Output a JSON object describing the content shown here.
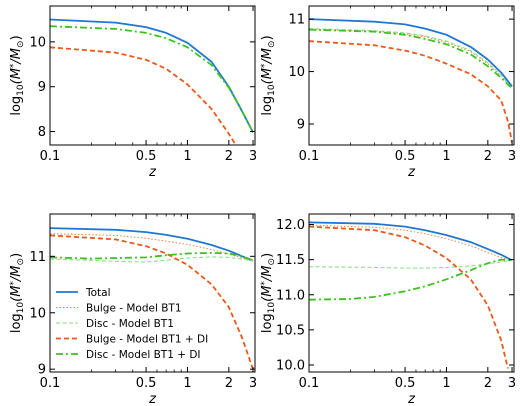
{
  "chart_data": [
    {
      "type": "line",
      "panel": "top-left",
      "xlabel": "z",
      "ylabel": "log10(M*/M⊙)",
      "xscale": "log",
      "xlim": [
        0.1,
        3.1
      ],
      "ylim": [
        7.7,
        10.8
      ],
      "xticks": [
        0.1,
        0.5,
        1,
        2,
        3
      ],
      "xtick_labels": [
        "0.1",
        "0.5",
        "1",
        "2",
        "3"
      ],
      "yticks": [
        8,
        9,
        10
      ],
      "ytick_labels": [
        "8",
        "9",
        "10"
      ],
      "grid": false,
      "series": [
        {
          "ref": "total",
          "x": [
            0.1,
            0.3,
            0.5,
            0.7,
            1.0,
            1.5,
            2.0,
            2.5,
            3.0
          ],
          "y": [
            10.5,
            10.43,
            10.33,
            10.2,
            9.98,
            9.55,
            9.0,
            8.45,
            7.98
          ]
        },
        {
          "ref": "bulge_bt1_di",
          "x": [
            0.1,
            0.3,
            0.5,
            0.7,
            1.0,
            1.5,
            2.0,
            2.3
          ],
          "y": [
            9.88,
            9.76,
            9.6,
            9.4,
            9.05,
            8.5,
            7.95,
            7.65
          ]
        },
        {
          "ref": "disc_bt1_di",
          "x": [
            0.1,
            0.3,
            0.5,
            0.7,
            1.0,
            1.5,
            2.0,
            2.5,
            3.0
          ],
          "y": [
            10.35,
            10.29,
            10.2,
            10.08,
            9.88,
            9.48,
            8.98,
            8.45,
            7.98
          ]
        }
      ]
    },
    {
      "type": "line",
      "panel": "top-right",
      "xlabel": "z",
      "ylabel": "log10(M*/M⊙)",
      "xscale": "log",
      "xlim": [
        0.1,
        3.1
      ],
      "ylim": [
        8.6,
        11.25
      ],
      "xticks": [
        0.1,
        0.5,
        1,
        2,
        3
      ],
      "xtick_labels": [
        "0.1",
        "0.5",
        "1",
        "2",
        "3"
      ],
      "yticks": [
        9,
        10,
        11
      ],
      "ytick_labels": [
        "9",
        "10",
        "11"
      ],
      "grid": false,
      "series": [
        {
          "ref": "total",
          "x": [
            0.1,
            0.3,
            0.5,
            0.7,
            1.0,
            1.5,
            2.0,
            2.5,
            3.0
          ],
          "y": [
            11.0,
            10.95,
            10.9,
            10.82,
            10.7,
            10.47,
            10.23,
            9.98,
            9.72
          ]
        },
        {
          "ref": "bulge_bt1",
          "x": [
            0.1,
            0.3,
            0.5,
            0.7,
            1.0,
            1.5,
            2.0,
            2.5,
            3.0
          ],
          "y": [
            10.8,
            10.77,
            10.72,
            10.66,
            10.56,
            10.38,
            10.15,
            9.92,
            9.68
          ]
        },
        {
          "ref": "disc_bt1",
          "x": [
            0.1,
            0.3,
            0.5,
            0.7,
            1.0,
            1.5,
            2.0,
            2.5,
            3.0
          ],
          "y": [
            10.82,
            10.78,
            10.74,
            10.68,
            10.58,
            10.4,
            10.17,
            9.93,
            9.68
          ]
        },
        {
          "ref": "bulge_bt1_di",
          "x": [
            0.1,
            0.3,
            0.5,
            0.7,
            1.0,
            1.5,
            2.0,
            2.5,
            2.8,
            3.0
          ],
          "y": [
            10.58,
            10.5,
            10.4,
            10.3,
            10.15,
            9.95,
            9.72,
            9.45,
            9.05,
            8.65
          ]
        },
        {
          "ref": "disc_bt1_di",
          "x": [
            0.1,
            0.3,
            0.5,
            0.7,
            1.0,
            1.5,
            2.0,
            2.5,
            3.0
          ],
          "y": [
            10.8,
            10.76,
            10.7,
            10.62,
            10.52,
            10.33,
            10.1,
            9.88,
            9.68
          ]
        }
      ]
    },
    {
      "type": "line",
      "panel": "bottom-left",
      "xlabel": "z",
      "ylabel": "log10(M*/M⊙)",
      "xscale": "log",
      "xlim": [
        0.1,
        3.1
      ],
      "ylim": [
        8.95,
        11.75
      ],
      "xticks": [
        0.1,
        0.5,
        1,
        2,
        3
      ],
      "xtick_labels": [
        "0.1",
        "0.5",
        "1",
        "2",
        "3"
      ],
      "yticks": [
        9,
        10,
        11
      ],
      "ytick_labels": [
        "9",
        "10",
        "11"
      ],
      "grid": false,
      "series": [
        {
          "ref": "total",
          "x": [
            0.1,
            0.3,
            0.5,
            0.7,
            1.0,
            1.5,
            2.0,
            2.5,
            3.0
          ],
          "y": [
            11.5,
            11.47,
            11.43,
            11.38,
            11.31,
            11.2,
            11.1,
            11.0,
            10.92
          ]
        },
        {
          "ref": "bulge_bt1",
          "x": [
            0.1,
            0.3,
            0.5,
            0.7,
            1.0,
            1.5,
            2.0,
            2.5,
            3.0
          ],
          "y": [
            11.4,
            11.37,
            11.32,
            11.27,
            11.21,
            11.12,
            11.04,
            10.97,
            10.92
          ]
        },
        {
          "ref": "disc_bt1",
          "x": [
            0.1,
            0.2,
            0.3,
            0.5,
            0.7,
            1.0,
            1.5,
            2.0,
            2.5,
            3.0
          ],
          "y": [
            10.95,
            10.93,
            10.91,
            10.9,
            10.93,
            10.97,
            10.99,
            10.98,
            10.95,
            10.92
          ]
        },
        {
          "ref": "bulge_bt1_di",
          "x": [
            0.1,
            0.3,
            0.5,
            0.7,
            1.0,
            1.5,
            2.0,
            2.5,
            3.0
          ],
          "y": [
            11.37,
            11.3,
            11.18,
            11.05,
            10.85,
            10.5,
            10.1,
            9.55,
            9.0
          ]
        },
        {
          "ref": "disc_bt1_di",
          "x": [
            0.1,
            0.2,
            0.3,
            0.5,
            0.7,
            1.0,
            1.5,
            2.0,
            2.5,
            3.0
          ],
          "y": [
            10.98,
            10.96,
            10.97,
            10.98,
            11.02,
            11.05,
            11.06,
            11.05,
            11.0,
            10.93
          ]
        }
      ]
    },
    {
      "type": "line",
      "panel": "bottom-right",
      "xlabel": "z",
      "ylabel": "log10(M*/M⊙)",
      "xscale": "log",
      "xlim": [
        0.1,
        3.1
      ],
      "ylim": [
        9.9,
        12.15
      ],
      "xticks": [
        0.1,
        0.5,
        1,
        2,
        3
      ],
      "xtick_labels": [
        "0.1",
        "0.5",
        "1",
        "2",
        "3"
      ],
      "yticks": [
        10.0,
        10.5,
        11.0,
        11.5,
        12.0
      ],
      "ytick_labels": [
        "10.0",
        "10.5",
        "11.0",
        "11.5",
        "12.0"
      ],
      "grid": false,
      "series": [
        {
          "ref": "total",
          "x": [
            0.1,
            0.3,
            0.5,
            0.7,
            1.0,
            1.5,
            2.0,
            2.5,
            3.0
          ],
          "y": [
            12.03,
            12.01,
            11.97,
            11.92,
            11.85,
            11.75,
            11.65,
            11.57,
            11.49
          ]
        },
        {
          "ref": "bulge_bt1",
          "x": [
            0.1,
            0.3,
            0.5,
            0.7,
            1.0,
            1.5,
            2.0,
            2.5,
            3.0
          ],
          "y": [
            11.99,
            11.96,
            11.92,
            11.87,
            11.8,
            11.7,
            11.6,
            11.53,
            11.49
          ]
        },
        {
          "ref": "disc_bt1",
          "x": [
            0.1,
            0.3,
            0.5,
            0.7,
            1.0,
            1.5,
            2.0,
            2.5,
            3.0
          ],
          "y": [
            11.4,
            11.39,
            11.38,
            11.38,
            11.39,
            11.41,
            11.44,
            11.47,
            11.49
          ]
        },
        {
          "ref": "bulge_bt1_di",
          "x": [
            0.1,
            0.3,
            0.5,
            0.7,
            1.0,
            1.5,
            2.0,
            2.5,
            2.8
          ],
          "y": [
            11.97,
            11.92,
            11.82,
            11.7,
            11.52,
            11.22,
            10.85,
            10.35,
            9.95
          ]
        },
        {
          "ref": "disc_bt1_di",
          "x": [
            0.1,
            0.2,
            0.3,
            0.5,
            0.7,
            1.0,
            1.5,
            2.0,
            2.5,
            3.0
          ],
          "y": [
            10.93,
            10.94,
            10.97,
            11.05,
            11.12,
            11.22,
            11.35,
            11.45,
            11.5,
            11.49
          ]
        }
      ]
    }
  ],
  "legend": {
    "panel": "bottom-left",
    "placement": "lower-left",
    "entries": [
      {
        "ref": "total",
        "label": "Total",
        "color": "#1f77d4",
        "style": "solid"
      },
      {
        "ref": "bulge_bt1",
        "label": "Bulge - Model BT1",
        "color": "#f07f3c",
        "style": "dotted"
      },
      {
        "ref": "disc_bt1",
        "label": "Disc - Model BT1",
        "color": "#7ee07e",
        "style": "dashed-thin"
      },
      {
        "ref": "bulge_bt1_di",
        "label": "Bulge - Model BT1 + DI",
        "color": "#e8591a",
        "style": "dashed"
      },
      {
        "ref": "disc_bt1_di",
        "label": "Disc - Model BT1 + DI",
        "color": "#3cc21e",
        "style": "dashdot"
      }
    ]
  }
}
